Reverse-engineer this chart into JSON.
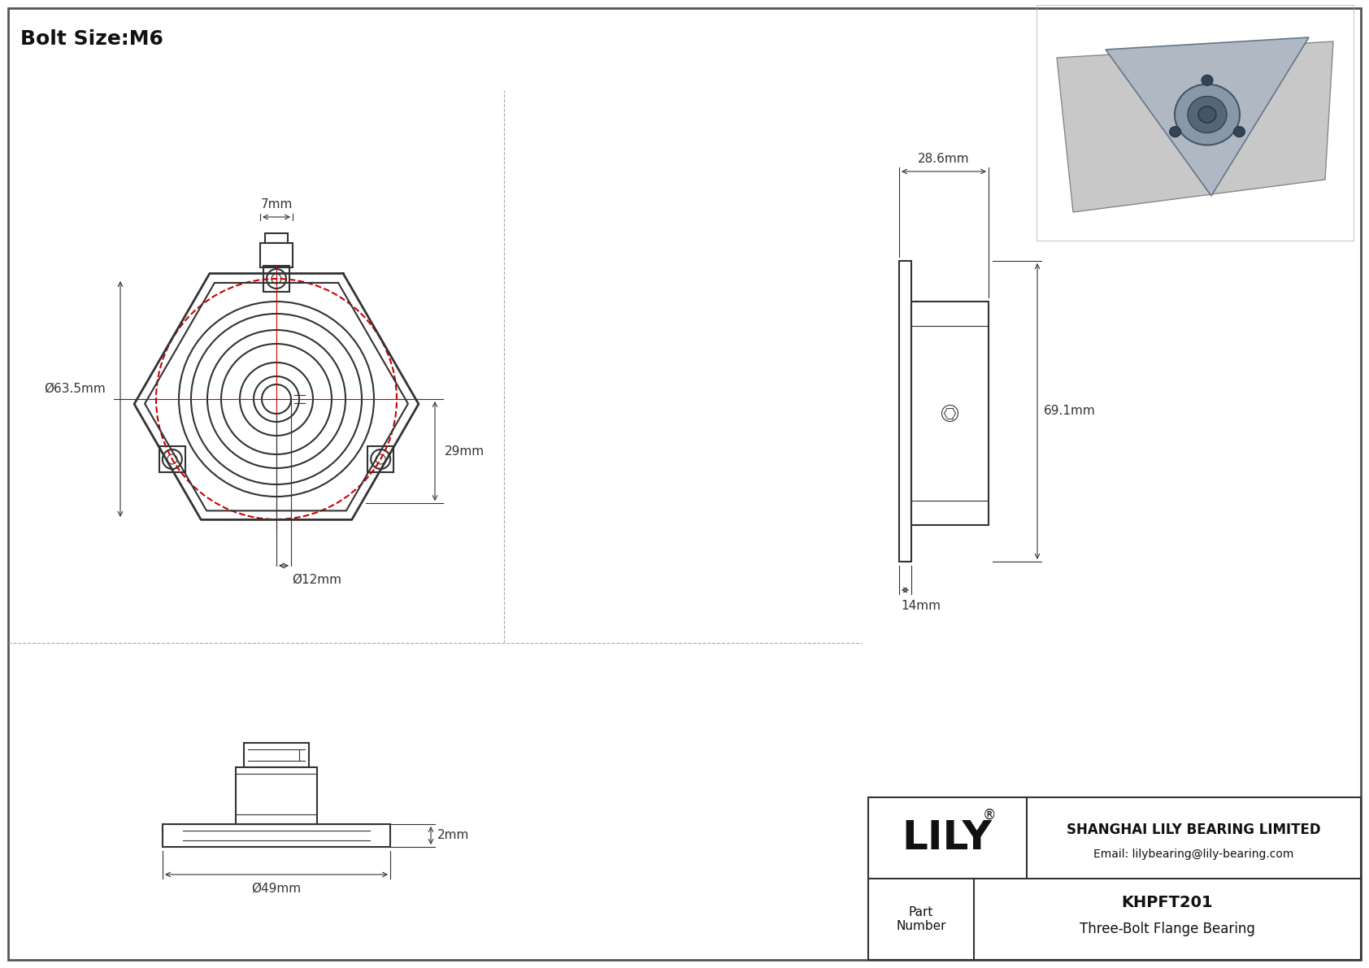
{
  "title": "Bolt Size:M6",
  "bg_color": "#f0f0f0",
  "line_color": "#333333",
  "red_color": "#cc0000",
  "dim_color": "#333333",
  "title_fontsize": 18,
  "dim_fontsize": 11,
  "company_name": "SHANGHAI LILY BEARING LIMITED",
  "company_email": "Email: lilybearing@lily-bearing.com",
  "company_logo": "LILY",
  "part_label": "Part\nNumber",
  "part_number": "KHPFT201",
  "part_desc": "Three-Bolt Flange Bearing",
  "dim_7mm": "7mm",
  "dim_63_5mm": "Ø63.5mm",
  "dim_29mm": "29mm",
  "dim_12mm": "Ø12mm",
  "dim_28_6mm": "28.6mm",
  "dim_69_1mm": "69.1mm",
  "dim_14mm": "14mm",
  "dim_2mm": "2mm",
  "dim_49mm": "Ø49mm"
}
